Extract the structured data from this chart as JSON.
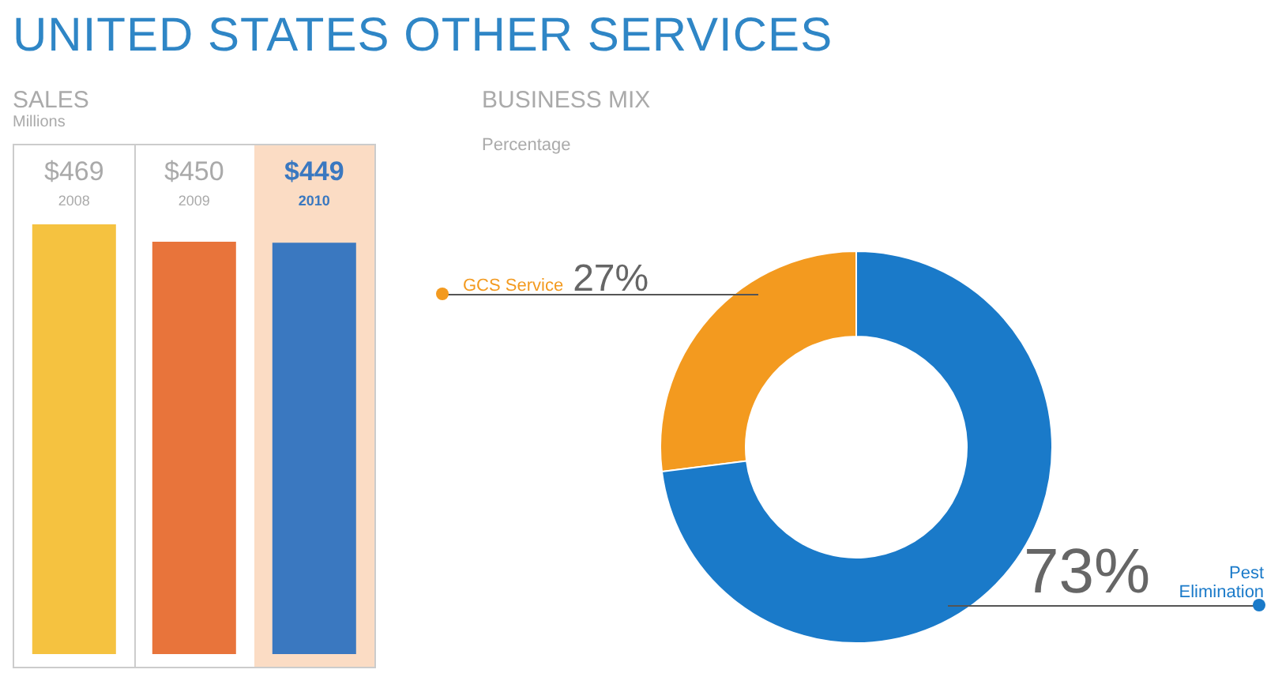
{
  "chart_data": [
    {
      "type": "bar",
      "title": "UNITED STATES OTHER SERVICES",
      "subtitle": "SALES",
      "ylabel": "Millions",
      "categories": [
        "2008",
        "2009",
        "2010"
      ],
      "values": [
        469,
        450,
        449
      ],
      "colors": [
        "#f5c240",
        "#e8743b",
        "#3a78c0"
      ],
      "value_labels": [
        "$469",
        "$450",
        "$449"
      ]
    },
    {
      "type": "donut",
      "title": "BUSINESS MIX",
      "subtitle": "Percentage",
      "categories": [
        "GCS Service",
        "Pest Elimination"
      ],
      "values": [
        27,
        73
      ],
      "colors": [
        "#f39a1f",
        "#1a7ac9"
      ],
      "value_labels": [
        "27%",
        "73%"
      ]
    }
  ]
}
